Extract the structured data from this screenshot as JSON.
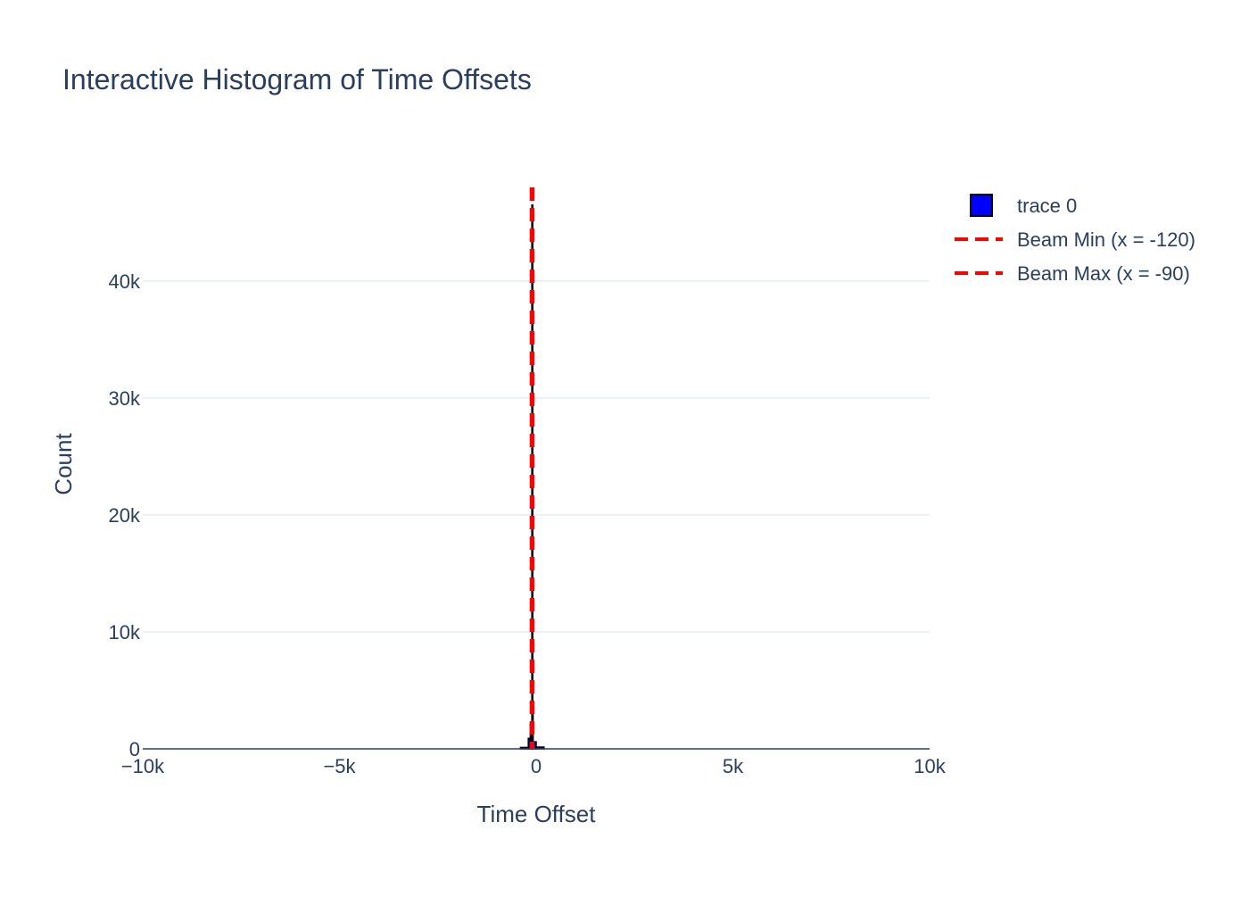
{
  "chart_data": {
    "type": "bar",
    "title": "Interactive Histogram of Time Offsets",
    "xlabel": "Time Offset",
    "ylabel": "Count",
    "xlim": [
      -10000,
      10000
    ],
    "ylim": [
      0,
      48000
    ],
    "x_ticks": [
      {
        "value": -10000,
        "label": "−10k"
      },
      {
        "value": -5000,
        "label": "−5k"
      },
      {
        "value": 0,
        "label": "0"
      },
      {
        "value": 5000,
        "label": "5k"
      },
      {
        "value": 10000,
        "label": "10k"
      }
    ],
    "y_ticks": [
      {
        "value": 0,
        "label": "0"
      },
      {
        "value": 10000,
        "label": "10k"
      },
      {
        "value": 20000,
        "label": "20k"
      },
      {
        "value": 30000,
        "label": "30k"
      },
      {
        "value": 40000,
        "label": "40k"
      }
    ],
    "grid": "horizontal",
    "legend_position": "top-right",
    "series": [
      {
        "name": "trace 0",
        "kind": "histogram",
        "color": "#0000ff",
        "outline": "#000000",
        "bins": [
          {
            "x0": -400,
            "x1": -200,
            "count": 120
          },
          {
            "x0": -200,
            "x1": -150,
            "count": 900
          },
          {
            "x0": -150,
            "x1": -110,
            "count": 2200
          },
          {
            "x0": -110,
            "x1": -100,
            "count": 46500
          },
          {
            "x0": -100,
            "x1": -80,
            "count": 3400
          },
          {
            "x0": -80,
            "x1": 0,
            "count": 600
          },
          {
            "x0": 0,
            "x1": 200,
            "count": 150
          }
        ]
      },
      {
        "name": "Beam Min  (x = -120)",
        "kind": "vline",
        "x": -120,
        "color": "#ff0000",
        "dash": "dashed"
      },
      {
        "name": "Beam Max  (x = -90)",
        "kind": "vline",
        "x": -90,
        "color": "#ff0000",
        "dash": "dashed"
      }
    ]
  }
}
